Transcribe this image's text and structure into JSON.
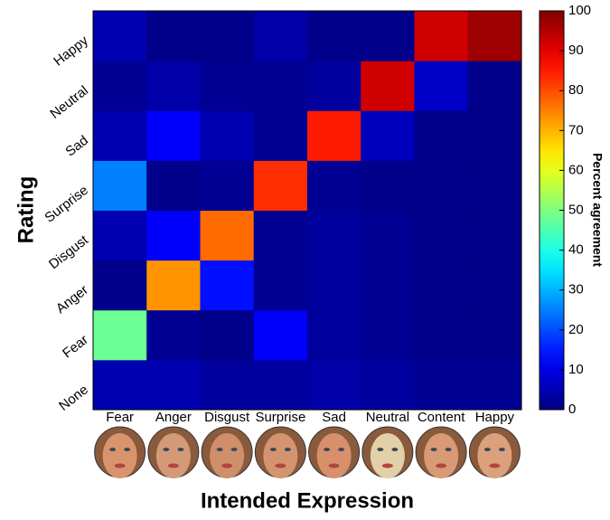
{
  "chart_data": {
    "type": "heatmap",
    "x_label": "Intended Expression",
    "y_label": "Rating",
    "colorbar_label": "Percent agreement",
    "colormap": "jet",
    "x_categories": [
      "Fear",
      "Anger",
      "Disgust",
      "Surprise",
      "Sad",
      "Neutral",
      "Content",
      "Happy"
    ],
    "y_categories": [
      "None",
      "Fear",
      "Anger",
      "Disgust",
      "Surprise",
      "Sad",
      "Neutral",
      "Happy"
    ],
    "values": [
      [
        5,
        5,
        3,
        3,
        4,
        3,
        2,
        2
      ],
      [
        48,
        2,
        1,
        12,
        3,
        2,
        1,
        1
      ],
      [
        1,
        73,
        14,
        2,
        3,
        2,
        1,
        1
      ],
      [
        5,
        12,
        77,
        2,
        3,
        2,
        1,
        1
      ],
      [
        25,
        1,
        2,
        83,
        2,
        1,
        1,
        1
      ],
      [
        5,
        12,
        5,
        2,
        85,
        6,
        1,
        1
      ],
      [
        2,
        4,
        2,
        2,
        3,
        92,
        7,
        1
      ],
      [
        5,
        1,
        1,
        4,
        1,
        1,
        92,
        97
      ]
    ],
    "zlim": [
      0,
      100
    ],
    "zticks": [
      0,
      10,
      20,
      30,
      40,
      50,
      60,
      70,
      80,
      90,
      100
    ]
  }
}
